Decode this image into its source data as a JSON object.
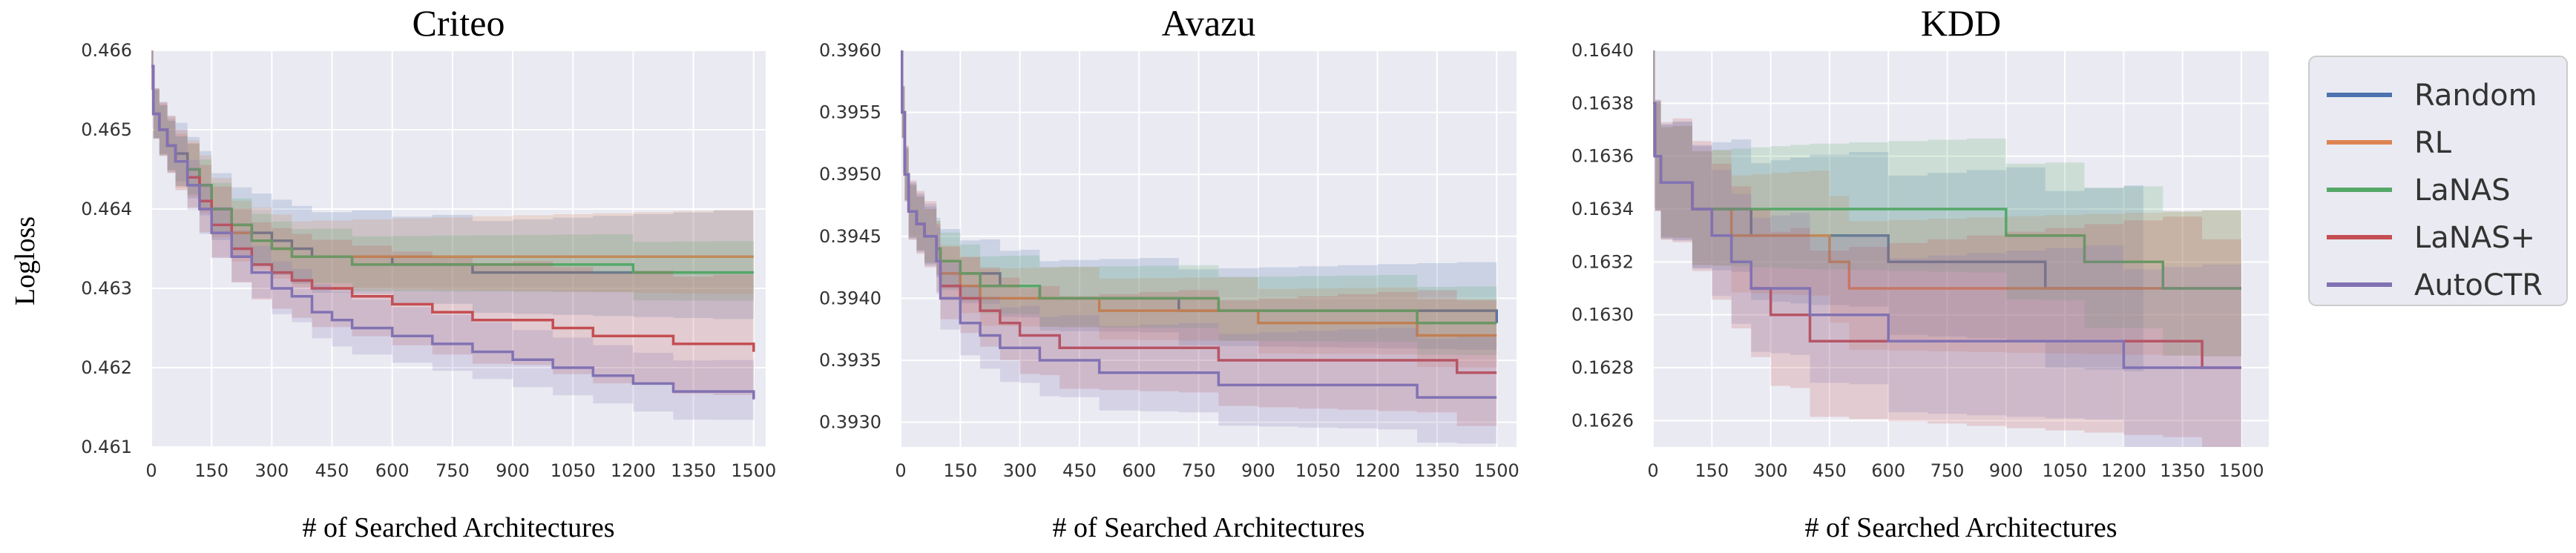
{
  "ylabel": "Logloss",
  "xlabel": "# of Searched Architectures",
  "legend": [
    "Random",
    "RL",
    "LaNAS",
    "LaNAS+",
    "AutoCTR"
  ],
  "colors": {
    "Random": "#4c72b0",
    "RL": "#dd8452",
    "LaNAS": "#55a868",
    "LaNAS+": "#c44e52",
    "AutoCTR": "#8172b3",
    "panel_bg": "#eaeaf2",
    "grid": "#ffffff"
  },
  "chart_data": [
    {
      "type": "line",
      "title": "Criteo",
      "xlabel": "# of Searched Architectures",
      "ylabel": "Logloss",
      "xlim": [
        0,
        1530
      ],
      "ylim": [
        0.461,
        0.466
      ],
      "xticks": [
        0,
        150,
        300,
        450,
        600,
        750,
        900,
        1050,
        1200,
        1350,
        1500
      ],
      "yticks": [
        0.461,
        0.462,
        0.463,
        0.464,
        0.465,
        0.466
      ],
      "ytick_labels": [
        "0.461",
        "0.462",
        "0.463",
        "0.464",
        "0.465",
        "0.466"
      ],
      "series": [
        {
          "name": "Random",
          "x": [
            0,
            5,
            20,
            40,
            60,
            90,
            120,
            150,
            200,
            250,
            300,
            350,
            400,
            500,
            600,
            700,
            800,
            900,
            1000,
            1100,
            1200,
            1300,
            1400,
            1500
          ],
          "y": [
            0.4658,
            0.4652,
            0.465,
            0.4648,
            0.4647,
            0.4645,
            0.4643,
            0.464,
            0.4638,
            0.4637,
            0.4636,
            0.4635,
            0.4634,
            0.4634,
            0.4633,
            0.4633,
            0.4632,
            0.4632,
            0.4632,
            0.4632,
            0.4632,
            0.4632,
            0.4632,
            0.4632
          ],
          "band": [
            0.0003,
            0.0008
          ]
        },
        {
          "name": "RL",
          "x": [
            0,
            5,
            20,
            40,
            60,
            90,
            120,
            150,
            200,
            250,
            300,
            350,
            400,
            500,
            600,
            700,
            800,
            900,
            1000,
            1100,
            1200,
            1300,
            1400,
            1500
          ],
          "y": [
            0.4658,
            0.4652,
            0.465,
            0.4648,
            0.4646,
            0.4645,
            0.4643,
            0.464,
            0.4637,
            0.4636,
            0.4635,
            0.4634,
            0.4634,
            0.4634,
            0.4634,
            0.4634,
            0.4634,
            0.4634,
            0.4634,
            0.4634,
            0.4634,
            0.4634,
            0.4634,
            0.4634
          ],
          "band": [
            0.0003,
            0.0006
          ]
        },
        {
          "name": "LaNAS",
          "x": [
            0,
            5,
            20,
            40,
            60,
            90,
            120,
            150,
            200,
            250,
            300,
            350,
            400,
            500,
            600,
            700,
            800,
            900,
            1000,
            1100,
            1200,
            1300,
            1400,
            1500
          ],
          "y": [
            0.4658,
            0.4652,
            0.465,
            0.4648,
            0.4646,
            0.4645,
            0.4643,
            0.464,
            0.4638,
            0.4636,
            0.4635,
            0.4634,
            0.4634,
            0.4633,
            0.4633,
            0.4633,
            0.4633,
            0.4633,
            0.4633,
            0.4633,
            0.4632,
            0.4632,
            0.4632,
            0.4632
          ],
          "band": [
            0.0003,
            0.0004
          ]
        },
        {
          "name": "LaNAS+",
          "x": [
            0,
            5,
            20,
            40,
            60,
            90,
            120,
            150,
            200,
            250,
            300,
            350,
            400,
            500,
            600,
            700,
            800,
            900,
            1000,
            1100,
            1200,
            1300,
            1400,
            1500
          ],
          "y": [
            0.4658,
            0.4652,
            0.465,
            0.4648,
            0.4646,
            0.4644,
            0.4641,
            0.4638,
            0.4635,
            0.4633,
            0.4632,
            0.4631,
            0.463,
            0.4629,
            0.4628,
            0.4627,
            0.4626,
            0.4626,
            0.4625,
            0.4624,
            0.4624,
            0.4623,
            0.4623,
            0.4622
          ],
          "band": [
            0.0003,
            0.0009
          ]
        },
        {
          "name": "AutoCTR",
          "x": [
            0,
            5,
            20,
            40,
            60,
            90,
            120,
            150,
            200,
            250,
            300,
            350,
            400,
            450,
            500,
            600,
            700,
            800,
            900,
            1000,
            1100,
            1200,
            1300,
            1400,
            1500
          ],
          "y": [
            0.4658,
            0.4652,
            0.465,
            0.4648,
            0.4646,
            0.4643,
            0.464,
            0.4637,
            0.4634,
            0.4632,
            0.463,
            0.4629,
            0.4627,
            0.4626,
            0.4625,
            0.4624,
            0.4623,
            0.4622,
            0.4621,
            0.462,
            0.4619,
            0.4618,
            0.4617,
            0.4617,
            0.4616
          ],
          "band": [
            0.0003,
            0.0004
          ]
        }
      ]
    },
    {
      "type": "line",
      "title": "Avazu",
      "xlabel": "# of Searched Architectures",
      "ylabel": "",
      "xlim": [
        0,
        1550
      ],
      "ylim": [
        0.3928,
        0.396
      ],
      "xticks": [
        0,
        150,
        300,
        450,
        600,
        750,
        900,
        1050,
        1200,
        1350,
        1500
      ],
      "yticks": [
        0.393,
        0.3935,
        0.394,
        0.3945,
        0.395,
        0.3955,
        0.396
      ],
      "ytick_labels": [
        "0.3930",
        "0.3935",
        "0.3940",
        "0.3945",
        "0.3950",
        "0.3955",
        "0.3960"
      ],
      "series": [
        {
          "name": "Random",
          "x": [
            0,
            3,
            10,
            20,
            40,
            60,
            90,
            100,
            150,
            200,
            250,
            300,
            350,
            400,
            500,
            600,
            700,
            800,
            900,
            1000,
            1100,
            1200,
            1300,
            1400,
            1500
          ],
          "y": [
            0.396,
            0.3955,
            0.395,
            0.3947,
            0.3946,
            0.3945,
            0.3944,
            0.3943,
            0.3942,
            0.3942,
            0.3941,
            0.3941,
            0.394,
            0.394,
            0.394,
            0.394,
            0.3939,
            0.3939,
            0.3939,
            0.3939,
            0.3939,
            0.3939,
            0.3939,
            0.3939,
            0.3938
          ],
          "band": [
            0.0002,
            0.0004
          ]
        },
        {
          "name": "RL",
          "x": [
            0,
            3,
            10,
            20,
            40,
            60,
            90,
            100,
            150,
            200,
            250,
            300,
            350,
            400,
            500,
            600,
            700,
            800,
            900,
            1000,
            1100,
            1200,
            1300,
            1400,
            1500
          ],
          "y": [
            0.396,
            0.3955,
            0.395,
            0.3947,
            0.3946,
            0.3945,
            0.3944,
            0.3942,
            0.3941,
            0.394,
            0.394,
            0.394,
            0.394,
            0.394,
            0.3939,
            0.3939,
            0.3939,
            0.3939,
            0.3938,
            0.3938,
            0.3938,
            0.3938,
            0.3937,
            0.3937,
            0.3937
          ],
          "band": [
            0.0002,
            0.0003
          ]
        },
        {
          "name": "LaNAS",
          "x": [
            0,
            3,
            10,
            20,
            40,
            60,
            90,
            100,
            150,
            200,
            250,
            300,
            350,
            400,
            500,
            600,
            700,
            800,
            900,
            1000,
            1100,
            1200,
            1300,
            1400,
            1500
          ],
          "y": [
            0.396,
            0.3955,
            0.395,
            0.3947,
            0.3946,
            0.3945,
            0.3944,
            0.3943,
            0.3942,
            0.3941,
            0.3941,
            0.3941,
            0.394,
            0.394,
            0.394,
            0.394,
            0.394,
            0.3939,
            0.3939,
            0.3939,
            0.3939,
            0.3939,
            0.3938,
            0.3938,
            0.3938
          ],
          "band": [
            0.0002,
            0.0003
          ]
        },
        {
          "name": "LaNAS+",
          "x": [
            0,
            3,
            10,
            20,
            40,
            60,
            90,
            100,
            150,
            200,
            250,
            300,
            350,
            400,
            500,
            600,
            700,
            800,
            900,
            1000,
            1100,
            1200,
            1300,
            1400,
            1500
          ],
          "y": [
            0.396,
            0.3955,
            0.395,
            0.3947,
            0.3946,
            0.3945,
            0.3943,
            0.3941,
            0.394,
            0.3939,
            0.3938,
            0.3937,
            0.3937,
            0.3936,
            0.3936,
            0.3936,
            0.3936,
            0.3935,
            0.3935,
            0.3935,
            0.3935,
            0.3935,
            0.3935,
            0.3934,
            0.3934
          ],
          "band": [
            0.0002,
            0.0006
          ]
        },
        {
          "name": "AutoCTR",
          "x": [
            0,
            3,
            10,
            20,
            40,
            60,
            90,
            100,
            150,
            200,
            250,
            300,
            350,
            400,
            500,
            600,
            700,
            800,
            900,
            1000,
            1100,
            1200,
            1300,
            1400,
            1500
          ],
          "y": [
            0.396,
            0.3955,
            0.395,
            0.3947,
            0.3946,
            0.3945,
            0.3943,
            0.394,
            0.3938,
            0.3937,
            0.3936,
            0.3936,
            0.3935,
            0.3935,
            0.3934,
            0.3934,
            0.3934,
            0.3933,
            0.3933,
            0.3933,
            0.3933,
            0.3933,
            0.3932,
            0.3932,
            0.3932
          ],
          "band": [
            0.0002,
            0.0005
          ]
        }
      ]
    },
    {
      "type": "line",
      "title": "KDD",
      "xlabel": "# of Searched Architectures",
      "ylabel": "",
      "xlim": [
        0,
        1570
      ],
      "ylim": [
        0.1625,
        0.164
      ],
      "xticks": [
        0,
        150,
        300,
        450,
        600,
        750,
        900,
        1050,
        1200,
        1350,
        1500
      ],
      "yticks": [
        0.1626,
        0.1628,
        0.163,
        0.1632,
        0.1634,
        0.1636,
        0.1638,
        0.164
      ],
      "ytick_labels": [
        "0.1626",
        "0.1628",
        "0.1630",
        "0.1632",
        "0.1634",
        "0.1636",
        "0.1638",
        "0.1640"
      ],
      "series": [
        {
          "name": "Random",
          "x": [
            0,
            5,
            20,
            50,
            100,
            150,
            200,
            250,
            300,
            350,
            400,
            500,
            600,
            700,
            800,
            900,
            1000,
            1100,
            1200,
            1250
          ],
          "y": [
            0.1638,
            0.1636,
            0.1635,
            0.1635,
            0.1634,
            0.1634,
            0.1634,
            0.1633,
            0.1633,
            0.1633,
            0.1633,
            0.1633,
            0.1632,
            0.1632,
            0.1632,
            0.1632,
            0.1631,
            0.1631,
            0.1631,
            0.1631
          ],
          "band": [
            0.0002,
            0.0004
          ]
        },
        {
          "name": "RL",
          "x": [
            0,
            5,
            20,
            50,
            100,
            150,
            200,
            250,
            300,
            350,
            400,
            450,
            500,
            600,
            700,
            800,
            900,
            1000,
            1100,
            1200,
            1300,
            1400,
            1500
          ],
          "y": [
            0.1638,
            0.1636,
            0.1635,
            0.1635,
            0.1634,
            0.1634,
            0.1633,
            0.1633,
            0.1633,
            0.1633,
            0.1633,
            0.1632,
            0.1631,
            0.1631,
            0.1631,
            0.1631,
            0.1631,
            0.1631,
            0.1631,
            0.1631,
            0.1631,
            0.1631,
            0.1631
          ],
          "band": [
            0.0002,
            0.0003
          ]
        },
        {
          "name": "LaNAS",
          "x": [
            0,
            5,
            20,
            50,
            100,
            150,
            200,
            250,
            300,
            350,
            400,
            500,
            600,
            700,
            800,
            900,
            1000,
            1100,
            1200,
            1300,
            1400,
            1500
          ],
          "y": [
            0.1638,
            0.1636,
            0.1635,
            0.1635,
            0.1634,
            0.1634,
            0.1634,
            0.1634,
            0.1634,
            0.1634,
            0.1634,
            0.1634,
            0.1634,
            0.1634,
            0.1634,
            0.1633,
            0.1633,
            0.1632,
            0.1632,
            0.1631,
            0.1631,
            0.1631
          ],
          "band": [
            0.0002,
            0.0003
          ]
        },
        {
          "name": "LaNAS+",
          "x": [
            0,
            5,
            20,
            50,
            100,
            150,
            200,
            250,
            300,
            350,
            400,
            500,
            600,
            700,
            800,
            900,
            1000,
            1100,
            1200,
            1300,
            1400,
            1500
          ],
          "y": [
            0.1638,
            0.1636,
            0.1635,
            0.1635,
            0.1634,
            0.1633,
            0.1632,
            0.1631,
            0.163,
            0.163,
            0.1629,
            0.1629,
            0.1629,
            0.1629,
            0.1629,
            0.1629,
            0.1629,
            0.1629,
            0.1629,
            0.1629,
            0.1628,
            0.1628
          ],
          "band": [
            0.0002,
            0.0005
          ]
        },
        {
          "name": "AutoCTR",
          "x": [
            0,
            5,
            20,
            50,
            100,
            150,
            200,
            250,
            300,
            350,
            400,
            500,
            600,
            700,
            800,
            900,
            1000,
            1100,
            1200,
            1300,
            1400,
            1500
          ],
          "y": [
            0.1638,
            0.1636,
            0.1635,
            0.1635,
            0.1634,
            0.1633,
            0.1632,
            0.1631,
            0.1631,
            0.1631,
            0.163,
            0.163,
            0.1629,
            0.1629,
            0.1629,
            0.1629,
            0.1629,
            0.1629,
            0.1628,
            0.1628,
            0.1628,
            0.1628
          ],
          "band": [
            0.0002,
            0.0004
          ]
        }
      ]
    }
  ]
}
